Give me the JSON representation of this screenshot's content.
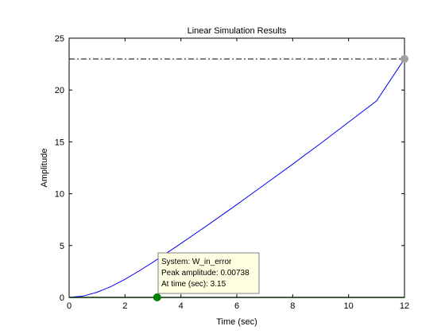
{
  "chart_data": {
    "type": "line",
    "title": "Linear Simulation Results",
    "xlabel": "Time (sec)",
    "ylabel": "Amplitude",
    "xlim": [
      0,
      12
    ],
    "ylim": [
      0,
      25
    ],
    "xticks": [
      0,
      2,
      4,
      6,
      8,
      10,
      12
    ],
    "yticks": [
      0,
      5,
      10,
      15,
      20,
      25
    ],
    "grid": false,
    "legend": "none",
    "series": [
      {
        "color": "#0000ff",
        "style": "solid",
        "x": [
          0,
          0.5,
          1,
          1.5,
          2,
          2.5,
          3,
          3.5,
          4,
          5,
          6,
          7,
          8,
          9,
          10,
          11,
          12
        ],
        "y": [
          0,
          0.13,
          0.5,
          1.05,
          1.75,
          2.55,
          3.4,
          4.3,
          5.2,
          7.05,
          8.95,
          10.9,
          12.85,
          14.85,
          16.9,
          18.95,
          23.0
        ]
      },
      {
        "color": "#008000",
        "style": "solid",
        "x": [
          0,
          12
        ],
        "y": [
          0,
          0
        ]
      }
    ],
    "reference_lines": [
      {
        "orientation": "horizontal",
        "value": 23,
        "style": "dash-dot",
        "color": "#000000"
      },
      {
        "orientation": "vertical",
        "value": 12,
        "style": "dash-dot",
        "color": "#000000"
      }
    ],
    "markers": [
      {
        "x": 12,
        "y": 23,
        "color": "#a0a0a0"
      },
      {
        "x": 3.15,
        "y": 0.00738,
        "color": "#008000"
      }
    ],
    "datatip": {
      "lines": [
        "System: W_in_error",
        "Peak amplitude: 0.00738",
        "At time (sec): 3.15"
      ],
      "bg": "#ffffe1"
    }
  }
}
